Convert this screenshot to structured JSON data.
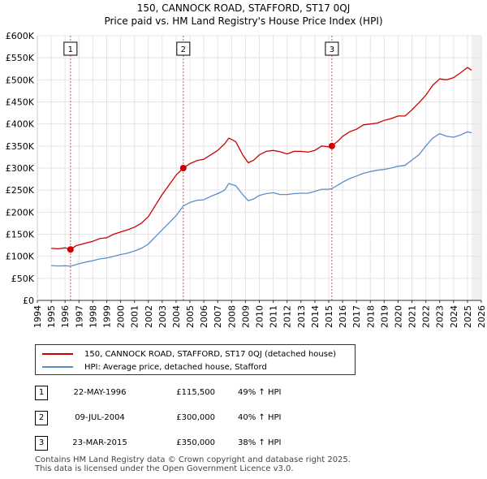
{
  "title_line1": "150, CANNOCK ROAD, STAFFORD, ST17 0QJ",
  "title_line2": "Price paid vs. HM Land Registry's House Price Index (HPI)",
  "colors": {
    "property": "#cc0000",
    "hpi": "#5b8ec8",
    "sale_marker": "#cc0000",
    "sale_line": "#cc0000",
    "projection": "#dddddd"
  },
  "chart_data": {
    "type": "line",
    "title": "Price paid vs. HM Land Registry's House Price Index (HPI)",
    "xlabel": "",
    "ylabel": "",
    "xlim": [
      1994,
      2026
    ],
    "ylim": [
      0,
      600000
    ],
    "x_ticks": [
      1994,
      1995,
      1996,
      1997,
      1998,
      1999,
      2000,
      2001,
      2002,
      2003,
      2004,
      2005,
      2006,
      2007,
      2008,
      2009,
      2010,
      2011,
      2012,
      2013,
      2014,
      2015,
      2016,
      2017,
      2018,
      2019,
      2020,
      2021,
      2022,
      2023,
      2024,
      2025,
      2026
    ],
    "y_ticks": [
      0,
      50000,
      100000,
      150000,
      200000,
      250000,
      300000,
      350000,
      400000,
      450000,
      500000,
      550000,
      600000
    ],
    "y_tick_labels": [
      "£0",
      "£50K",
      "£100K",
      "£150K",
      "£200K",
      "£250K",
      "£300K",
      "£350K",
      "£400K",
      "£450K",
      "£500K",
      "£550K",
      "£600K"
    ],
    "series": [
      {
        "name": "150, CANNOCK ROAD, STAFFORD, ST17 0QJ (detached house)",
        "x": [
          1995.0,
          1995.5,
          1996.0,
          1996.39,
          1996.8,
          1997.5,
          1998.0,
          1998.5,
          1999.0,
          1999.5,
          2000.0,
          2000.5,
          2001.0,
          2001.5,
          2002.0,
          2002.5,
          2003.0,
          2003.5,
          2004.0,
          2004.52,
          2005.0,
          2005.5,
          2006.0,
          2006.5,
          2007.0,
          2007.5,
          2007.8,
          2008.3,
          2008.8,
          2009.2,
          2009.6,
          2010.0,
          2010.5,
          2011.0,
          2011.5,
          2012.0,
          2012.5,
          2013.0,
          2013.5,
          2014.0,
          2014.5,
          2015.0,
          2015.23,
          2015.7,
          2016.0,
          2016.5,
          2017.0,
          2017.5,
          2018.0,
          2018.5,
          2019.0,
          2019.5,
          2020.0,
          2020.5,
          2021.0,
          2021.5,
          2022.0,
          2022.5,
          2023.0,
          2023.5,
          2024.0,
          2024.5,
          2025.0,
          2025.3
        ],
        "values": [
          118000,
          117000,
          119000,
          115500,
          124000,
          130000,
          134000,
          140000,
          142000,
          150000,
          155000,
          160000,
          166000,
          175000,
          190000,
          215000,
          240000,
          262000,
          284000,
          300000,
          310000,
          317000,
          320000,
          330000,
          340000,
          355000,
          368000,
          360000,
          330000,
          312000,
          318000,
          330000,
          338000,
          340000,
          337000,
          332000,
          338000,
          338000,
          336000,
          340000,
          350000,
          348000,
          350000,
          362000,
          372000,
          382000,
          388000,
          398000,
          400000,
          402000,
          408000,
          412000,
          418000,
          418000,
          432000,
          448000,
          465000,
          488000,
          502000,
          500000,
          505000,
          516000,
          528000,
          522000
        ]
      },
      {
        "name": "HPI: Average price, detached house, Stafford",
        "x": [
          1995.0,
          1995.5,
          1996.0,
          1996.39,
          1997.0,
          1997.5,
          1998.0,
          1998.5,
          1999.0,
          1999.5,
          2000.0,
          2000.5,
          2001.0,
          2001.5,
          2002.0,
          2002.5,
          2003.0,
          2003.5,
          2004.0,
          2004.52,
          2005.0,
          2005.5,
          2006.0,
          2006.5,
          2007.0,
          2007.5,
          2007.8,
          2008.3,
          2008.8,
          2009.2,
          2009.6,
          2010.0,
          2010.5,
          2011.0,
          2011.5,
          2012.0,
          2012.5,
          2013.0,
          2013.5,
          2014.0,
          2014.5,
          2015.0,
          2015.23,
          2015.7,
          2016.0,
          2016.5,
          2017.0,
          2017.5,
          2018.0,
          2018.5,
          2019.0,
          2019.5,
          2020.0,
          2020.5,
          2021.0,
          2021.5,
          2022.0,
          2022.5,
          2023.0,
          2023.5,
          2024.0,
          2024.5,
          2025.0,
          2025.3
        ],
        "values": [
          79000,
          78000,
          78500,
          77500,
          83000,
          87000,
          90000,
          94000,
          96000,
          100000,
          104000,
          107000,
          112000,
          118000,
          128000,
          144000,
          160000,
          176000,
          192000,
          214000,
          222000,
          227000,
          228000,
          236000,
          242000,
          250000,
          265000,
          260000,
          240000,
          226000,
          230000,
          238000,
          242000,
          244000,
          240000,
          240000,
          242000,
          243000,
          243000,
          247000,
          252000,
          252000,
          253500,
          262000,
          268000,
          276000,
          282000,
          288000,
          292000,
          295000,
          297000,
          300000,
          304000,
          306000,
          318000,
          330000,
          350000,
          368000,
          378000,
          372000,
          370000,
          375000,
          382000,
          380000
        ]
      }
    ],
    "sales": [
      {
        "label": "1",
        "x": 1996.39,
        "value": 115500,
        "date": "22-MAY-1996",
        "price": "£115,500",
        "hpi": "49% ↑ HPI"
      },
      {
        "label": "2",
        "x": 2004.52,
        "value": 300000,
        "date": "09-JUL-2004",
        "price": "£300,000",
        "hpi": "40% ↑ HPI"
      },
      {
        "label": "3",
        "x": 2015.23,
        "value": 350000,
        "date": "23-MAR-2015",
        "price": "£350,000",
        "hpi": "38% ↑ HPI"
      }
    ],
    "projection_start": 2025.3
  },
  "legend": {
    "property_label": "150, CANNOCK ROAD, STAFFORD, ST17 0QJ (detached house)",
    "hpi_label": "HPI: Average price, detached house, Stafford"
  },
  "sales_table": [
    {
      "num": "1",
      "date": "22-MAY-1996",
      "price": "£115,500",
      "hpi": "49% ↑ HPI"
    },
    {
      "num": "2",
      "date": "09-JUL-2004",
      "price": "£300,000",
      "hpi": "40% ↑ HPI"
    },
    {
      "num": "3",
      "date": "23-MAR-2015",
      "price": "£350,000",
      "hpi": "38% ↑ HPI"
    }
  ],
  "footer": {
    "line1": "Contains HM Land Registry data © Crown copyright and database right 2025.",
    "line2": "This data is licensed under the Open Government Licence v3.0."
  }
}
